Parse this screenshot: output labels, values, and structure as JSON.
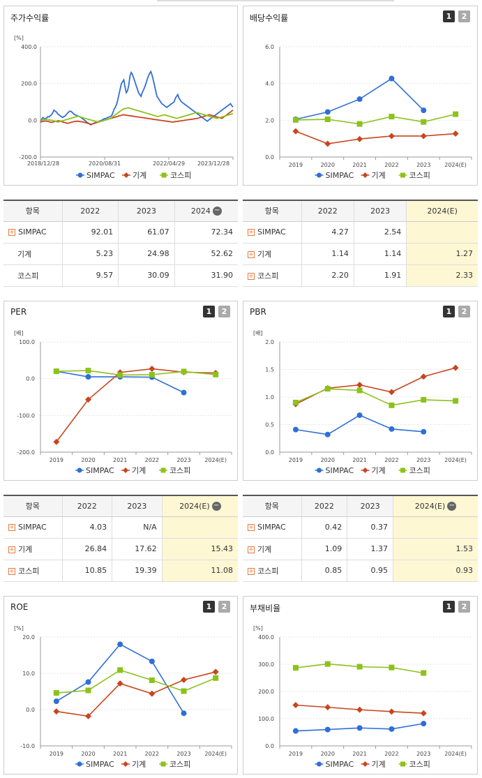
{
  "colors": {
    "simpac": "#2f6fd6",
    "machine": "#c8461e",
    "kospi": "#8cc21b"
  },
  "panels": [
    {
      "id": "p1",
      "title": "주가수익률",
      "buttons": []
    },
    {
      "id": "p2",
      "title": "배당수익률",
      "buttons": [
        "1",
        "2"
      ]
    },
    {
      "id": "p3",
      "title": "PER",
      "buttons": [
        "1",
        "2"
      ]
    },
    {
      "id": "p4",
      "title": "PBR",
      "buttons": [
        "1",
        "2"
      ]
    },
    {
      "id": "p5",
      "title": "ROE",
      "buttons": [
        "1",
        "2"
      ]
    },
    {
      "id": "p6",
      "title": "부채비율",
      "buttons": [
        "1",
        "2"
      ]
    }
  ],
  "legend": [
    "SIMPAC",
    "기계",
    "코스피"
  ],
  "tables": [
    {
      "id": "t1",
      "headers": [
        "항목",
        "2022",
        "2023",
        "2024"
      ],
      "has_minus": true,
      "rows": [
        {
          "name": "SIMPAC",
          "plus": true,
          "values": [
            "92.01",
            "61.07",
            "72.34"
          ],
          "hl": false
        },
        {
          "name": "기계",
          "plus": false,
          "values": [
            "5.23",
            "24.98",
            "52.62"
          ],
          "hl": false
        },
        {
          "name": "코스피",
          "plus": false,
          "values": [
            "9.57",
            "30.09",
            "31.90"
          ],
          "hl": false
        }
      ]
    },
    {
      "id": "t2",
      "headers": [
        "항목",
        "2022",
        "2023",
        "2024(E)"
      ],
      "has_minus": false,
      "rows": [
        {
          "name": "SIMPAC",
          "plus": true,
          "values": [
            "4.27",
            "2.54",
            ""
          ],
          "hl": true
        },
        {
          "name": "기계",
          "plus": true,
          "values": [
            "1.14",
            "1.14",
            "1.27"
          ],
          "hl": true
        },
        {
          "name": "코스피",
          "plus": true,
          "values": [
            "2.20",
            "1.91",
            "2.33"
          ],
          "hl": true
        }
      ]
    },
    {
      "id": "t3",
      "headers": [
        "항목",
        "2022",
        "2023",
        "2024(E)"
      ],
      "has_minus": true,
      "rows": [
        {
          "name": "SIMPAC",
          "plus": true,
          "values": [
            "4.03",
            "N/A",
            ""
          ],
          "hl": true
        },
        {
          "name": "기계",
          "plus": true,
          "values": [
            "26.84",
            "17.62",
            "15.43"
          ],
          "hl": true
        },
        {
          "name": "코스피",
          "plus": true,
          "values": [
            "10.85",
            "19.39",
            "11.08"
          ],
          "hl": true
        }
      ]
    },
    {
      "id": "t4",
      "headers": [
        "항목",
        "2022",
        "2023",
        "2024(E)"
      ],
      "has_minus": true,
      "rows": [
        {
          "name": "SIMPAC",
          "plus": true,
          "values": [
            "0.42",
            "0.37",
            ""
          ],
          "hl": true
        },
        {
          "name": "기계",
          "plus": true,
          "values": [
            "1.09",
            "1.37",
            "1.53"
          ],
          "hl": true
        },
        {
          "name": "코스피",
          "plus": true,
          "values": [
            "0.85",
            "0.95",
            "0.93"
          ],
          "hl": true
        }
      ]
    }
  ],
  "chart_data": [
    {
      "id": "c1",
      "type": "line",
      "unit": "[%]",
      "ylim": [
        -200,
        400
      ],
      "yticks": [
        "400.0",
        "200.0",
        "0.0",
        "-200.0"
      ],
      "xticks": [
        "2018/12/28",
        "2020/08/31",
        "2022/04/29",
        "2023/12/28"
      ],
      "series": [
        {
          "name": "SIMPAC",
          "values": [
            -5,
            5,
            15,
            10,
            8,
            12,
            20,
            18,
            25,
            30,
            40,
            55,
            50,
            45,
            35,
            30,
            25,
            20,
            15,
            20,
            22,
            30,
            38,
            45,
            50,
            48,
            42,
            35,
            30,
            28,
            25,
            22,
            20,
            15,
            10,
            5,
            0,
            -5,
            -12,
            -15,
            -20,
            -25,
            -22,
            -18,
            -15,
            -12,
            -10,
            -8,
            -5,
            -2,
            0,
            5,
            8,
            10,
            12,
            15,
            18,
            20,
            25,
            40,
            60,
            70,
            85,
            110,
            140,
            170,
            200,
            210,
            220,
            180,
            150,
            160,
            190,
            240,
            260,
            250,
            230,
            210,
            190,
            170,
            150,
            140,
            130,
            150,
            165,
            180,
            200,
            220,
            240,
            255,
            265,
            245,
            220,
            190,
            160,
            130,
            120,
            110,
            100,
            90,
            85,
            80,
            75,
            70,
            75,
            80,
            85,
            90,
            95,
            100,
            120,
            130,
            140,
            120,
            110,
            100,
            95,
            90,
            85,
            80,
            75,
            70,
            65,
            60,
            55,
            50,
            45,
            40,
            35,
            30,
            25,
            20,
            15,
            10,
            5,
            0,
            -5,
            0,
            5,
            10,
            15,
            20,
            25,
            30,
            35,
            40,
            45,
            50,
            55,
            60,
            65,
            70,
            75,
            80,
            85,
            90,
            80,
            72
          ]
        },
        {
          "name": "기계",
          "values": [
            -10,
            -8,
            -6,
            -5,
            -4,
            -5,
            -6,
            -8,
            -10,
            -12,
            -10,
            -8,
            -6,
            -5,
            -4,
            -3,
            -5,
            -7,
            -9,
            -11,
            -13,
            -15,
            -17,
            -15,
            -13,
            -11,
            -9,
            -8,
            -7,
            -6,
            -5,
            -6,
            -7,
            -8,
            -9,
            -10,
            -12,
            -14,
            -16,
            -18,
            -20,
            -22,
            -20,
            -18,
            -16,
            -14,
            -12,
            -10,
            -8,
            -6,
            -4,
            -2,
            0,
            2,
            4,
            6,
            8,
            10,
            12,
            14,
            16,
            18,
            20,
            22,
            24,
            26,
            28,
            30,
            29,
            28,
            27,
            26,
            25,
            24,
            23,
            22,
            21,
            20,
            19,
            18,
            17,
            16,
            15,
            14,
            13,
            12,
            11,
            10,
            9,
            8,
            7,
            6,
            5,
            4,
            3,
            2,
            1,
            0,
            -1,
            -2,
            -3,
            -4,
            -5,
            -6,
            -7,
            -8,
            -9,
            -10,
            -9,
            -8,
            -7,
            -6,
            -5,
            -4,
            -3,
            -2,
            -1,
            0,
            1,
            2,
            3,
            4,
            5,
            6,
            7,
            8,
            9,
            10,
            12,
            14,
            16,
            18,
            20,
            22,
            24,
            26,
            28,
            30,
            28,
            26,
            24,
            22,
            20,
            18,
            16,
            14,
            12,
            10,
            15,
            20,
            25,
            30,
            35,
            40,
            45,
            50,
            55
          ]
        },
        {
          "name": "코스피",
          "values": [
            -2,
            0,
            2,
            4,
            5,
            4,
            3,
            2,
            1,
            0,
            -2,
            -4,
            -6,
            -8,
            -10,
            -8,
            -6,
            -4,
            -2,
            0,
            2,
            4,
            6,
            8,
            10,
            12,
            14,
            16,
            18,
            20,
            22,
            20,
            18,
            16,
            14,
            12,
            10,
            8,
            6,
            4,
            2,
            0,
            -2,
            -4,
            -6,
            -8,
            -10,
            -8,
            -6,
            -4,
            -2,
            0,
            2,
            4,
            6,
            8,
            10,
            15,
            20,
            25,
            30,
            35,
            40,
            45,
            50,
            55,
            60,
            62,
            64,
            66,
            68,
            66,
            64,
            62,
            60,
            58,
            56,
            54,
            52,
            50,
            48,
            46,
            44,
            42,
            40,
            38,
            36,
            34,
            32,
            30,
            28,
            26,
            24,
            22,
            20,
            22,
            24,
            26,
            28,
            30,
            28,
            26,
            24,
            22,
            20,
            18,
            16,
            14,
            12,
            10,
            12,
            14,
            16,
            18,
            20,
            22,
            24,
            26,
            28,
            30,
            32,
            34,
            36,
            38,
            40,
            42,
            40,
            38,
            36,
            34,
            32,
            30,
            28,
            26,
            24,
            22,
            20,
            18,
            16,
            14,
            12,
            10,
            12,
            14,
            16,
            18,
            20,
            22,
            24,
            26,
            28,
            30,
            32,
            34,
            36
          ]
        }
      ]
    },
    {
      "id": "c2",
      "type": "line",
      "unit": "",
      "ylim": [
        0,
        6
      ],
      "yticks": [
        "6.0",
        "4.0",
        "2.0",
        "0.0"
      ],
      "categories": [
        "2019",
        "2020",
        "2021",
        "2022",
        "2023",
        "2024(E)"
      ],
      "series": [
        {
          "name": "SIMPAC",
          "values": [
            2.05,
            2.45,
            3.15,
            4.27,
            2.54,
            null
          ]
        },
        {
          "name": "기계",
          "values": [
            1.4,
            0.72,
            0.98,
            1.14,
            1.14,
            1.27
          ]
        },
        {
          "name": "코스피",
          "values": [
            2.02,
            2.05,
            1.8,
            2.2,
            1.91,
            2.33
          ]
        }
      ]
    },
    {
      "id": "c3",
      "type": "line",
      "unit": "[배]",
      "ylim": [
        -200,
        100
      ],
      "yticks": [
        "100.0",
        "0.0",
        "-100.0",
        "-200.0"
      ],
      "categories": [
        "2019",
        "2020",
        "2021",
        "2022",
        "2023",
        "2024(E)"
      ],
      "series": [
        {
          "name": "SIMPAC",
          "values": [
            20,
            5,
            5,
            4.03,
            -38,
            null
          ]
        },
        {
          "name": "기계",
          "values": [
            -172,
            -57,
            17,
            26.84,
            17.62,
            15.43
          ]
        },
        {
          "name": "코스피",
          "values": [
            20,
            22,
            10,
            10.85,
            19.39,
            11.08
          ]
        }
      ]
    },
    {
      "id": "c4",
      "type": "line",
      "unit": "[배]",
      "ylim": [
        0,
        2
      ],
      "yticks": [
        "2.0",
        "1.5",
        "1.0",
        "0.5",
        "0.0"
      ],
      "categories": [
        "2019",
        "2020",
        "2021",
        "2022",
        "2023",
        "2024(E)"
      ],
      "series": [
        {
          "name": "SIMPAC",
          "values": [
            0.41,
            0.32,
            0.67,
            0.42,
            0.37,
            null
          ]
        },
        {
          "name": "기계",
          "values": [
            0.87,
            1.16,
            1.22,
            1.09,
            1.37,
            1.53
          ]
        },
        {
          "name": "코스피",
          "values": [
            0.9,
            1.15,
            1.12,
            0.85,
            0.95,
            0.93
          ]
        }
      ]
    },
    {
      "id": "c5",
      "type": "line",
      "unit": "[%]",
      "ylim": [
        -10,
        20
      ],
      "yticks": [
        "20.0",
        "10.0",
        "0.0",
        "-10.0"
      ],
      "categories": [
        "2019",
        "2020",
        "2021",
        "2022",
        "2023",
        "2024(E)"
      ],
      "series": [
        {
          "name": "SIMPAC",
          "values": [
            2.3,
            7.6,
            18,
            13.3,
            -1,
            null
          ]
        },
        {
          "name": "기계",
          "values": [
            -0.5,
            -1.8,
            7.2,
            4.4,
            8.2,
            10.4
          ]
        },
        {
          "name": "코스피",
          "values": [
            4.6,
            5.3,
            10.9,
            8.1,
            5.1,
            8.7
          ]
        }
      ]
    },
    {
      "id": "c6",
      "type": "line",
      "unit": "[%]",
      "ylim": [
        0,
        400
      ],
      "yticks": [
        "400.0",
        "300.0",
        "200.0",
        "100.0",
        "0.0"
      ],
      "categories": [
        "2019",
        "2020",
        "2021",
        "2022",
        "2023",
        "2024(E)"
      ],
      "series": [
        {
          "name": "SIMPAC",
          "values": [
            55,
            60,
            66,
            62,
            82,
            null
          ]
        },
        {
          "name": "기계",
          "values": [
            150,
            142,
            133,
            126,
            120,
            null
          ]
        },
        {
          "name": "코스피",
          "values": [
            287,
            301,
            291,
            288,
            268,
            null
          ]
        }
      ]
    }
  ]
}
